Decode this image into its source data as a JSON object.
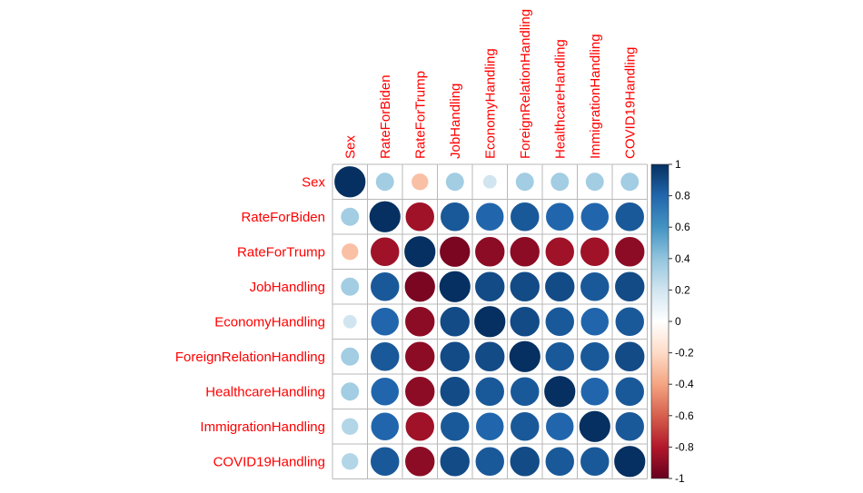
{
  "chart_data": {
    "type": "heatmap",
    "variables": [
      "Sex",
      "RateForBiden",
      "RateForTrump",
      "JobHandling",
      "EconomyHandling",
      "ForeignRelationHandling",
      "HealthcareHandling",
      "ImmigrationHandling",
      "COVID19Handling"
    ],
    "matrix": [
      [
        1.0,
        0.35,
        -0.3,
        0.35,
        0.2,
        0.35,
        0.35,
        0.35,
        0.35
      ],
      [
        0.35,
        1.0,
        -0.85,
        0.85,
        0.8,
        0.85,
        0.8,
        0.8,
        0.85
      ],
      [
        -0.3,
        -0.85,
        1.0,
        -0.95,
        -0.9,
        -0.9,
        -0.85,
        -0.85,
        -0.9
      ],
      [
        0.35,
        0.85,
        -0.95,
        1.0,
        0.9,
        0.9,
        0.9,
        0.85,
        0.9
      ],
      [
        0.2,
        0.8,
        -0.9,
        0.9,
        1.0,
        0.9,
        0.85,
        0.8,
        0.85
      ],
      [
        0.35,
        0.85,
        -0.9,
        0.9,
        0.9,
        1.0,
        0.85,
        0.85,
        0.9
      ],
      [
        0.35,
        0.8,
        -0.9,
        0.9,
        0.85,
        0.85,
        1.0,
        0.8,
        0.85
      ],
      [
        0.3,
        0.8,
        -0.85,
        0.85,
        0.8,
        0.85,
        0.8,
        1.0,
        0.85
      ],
      [
        0.3,
        0.85,
        -0.9,
        0.9,
        0.85,
        0.9,
        0.85,
        0.85,
        1.0
      ]
    ],
    "colorbar": {
      "range": [
        -1,
        1
      ],
      "ticks": [
        "1",
        "0.8",
        "0.6",
        "0.4",
        "0.2",
        "0",
        "-0.2",
        "-0.4",
        "-0.6",
        "-0.8",
        "-1"
      ],
      "colors": [
        "#67001F",
        "#B2182B",
        "#D6604D",
        "#F4A582",
        "#FDDBC7",
        "#FFFFFF",
        "#D1E5F0",
        "#92C5DE",
        "#4393C3",
        "#2166AC",
        "#053061"
      ]
    },
    "label_color": "#FF0000",
    "grid": true
  }
}
